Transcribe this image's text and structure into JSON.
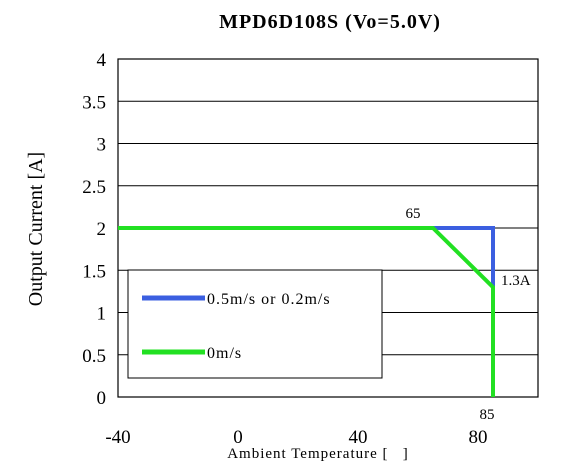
{
  "chart_data": {
    "type": "line",
    "title": "MPD6D108S (Vo=5.0V)",
    "xlabel": "Ambient Temperature [   ]",
    "ylabel": "Output Current [A]",
    "xlim": [
      -40,
      100
    ],
    "ylim": [
      0,
      4
    ],
    "x_ticks": [
      -40,
      0,
      40,
      80
    ],
    "x_tick_labels": [
      "-40",
      "0",
      "40",
      "80"
    ],
    "y_ticks": [
      0,
      0.5,
      1,
      1.5,
      2,
      2.5,
      3,
      3.5,
      4
    ],
    "y_tick_labels": [
      "0",
      "0.5",
      "1",
      "1.5",
      "2",
      "2.5",
      "3",
      "3.5",
      "4"
    ],
    "grid": "horizontal",
    "legend_position": "bottom-left",
    "series": [
      {
        "name": "0.5m/s or 0.2m/s",
        "color": "#3b5fe0",
        "points": [
          [
            -40,
            2
          ],
          [
            85,
            2
          ],
          [
            85,
            0
          ]
        ]
      },
      {
        "name": "0m/s",
        "color": "#22e022",
        "points": [
          [
            -40,
            2
          ],
          [
            65,
            2
          ],
          [
            85,
            1.3
          ],
          [
            85,
            0
          ]
        ]
      }
    ],
    "annotations": [
      {
        "text": "65",
        "x": 65,
        "y": 2
      },
      {
        "text": "1.3A",
        "x": 85,
        "y": 1.3
      },
      {
        "text": "85",
        "x": 85,
        "y": 0
      }
    ]
  }
}
